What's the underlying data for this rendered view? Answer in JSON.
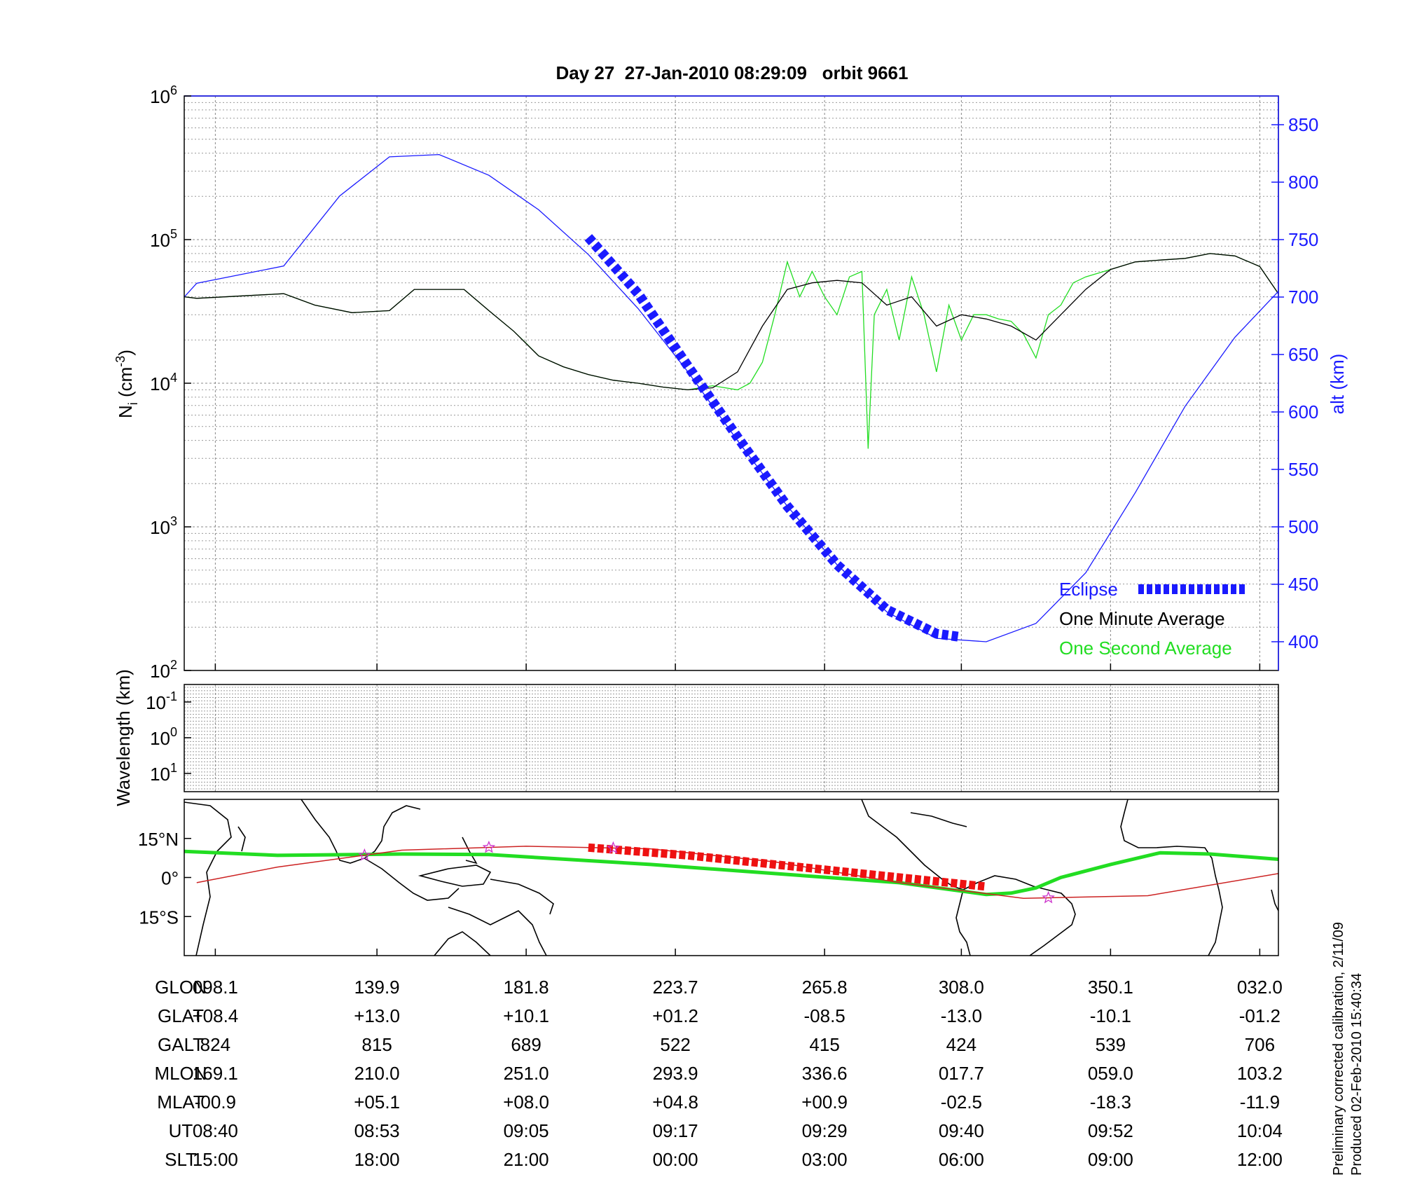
{
  "chart_data": [
    {
      "type": "line",
      "title": "Day 27  27-Jan-2010 08:29:09   orbit 9661",
      "ylabel_left": "N_i (cm^-3)",
      "ylabel_left_parts": {
        "base": "N",
        "sub": "i",
        "unit_open": " (cm",
        "sup": "-3",
        "unit_close": ")"
      },
      "ylabel_right": "alt (km)",
      "yscale_left": "log",
      "ylim_left": [
        100,
        1000000
      ],
      "ytick_left": [
        {
          "value": 100,
          "base": "10",
          "exp": "2"
        },
        {
          "value": 1000,
          "base": "10",
          "exp": "3"
        },
        {
          "value": 10000,
          "base": "10",
          "exp": "4"
        },
        {
          "value": 100000,
          "base": "10",
          "exp": "5"
        },
        {
          "value": 1000000,
          "base": "10",
          "exp": "6"
        }
      ],
      "ylim_right": [
        375,
        875
      ],
      "yticks_right": [
        "400",
        "450",
        "500",
        "550",
        "600",
        "650",
        "700",
        "750",
        "800",
        "850"
      ],
      "x_ticks_ut": [
        "08:40",
        "08:53",
        "09:05",
        "09:17",
        "09:29",
        "09:40",
        "09:52",
        "10:04"
      ],
      "xlim_ut_minutes": [
        -2.5,
        85.5
      ],
      "grid": true,
      "legend_position": "bottom-right",
      "legend": [
        {
          "name": "Eclipse",
          "color": "#1a1aff",
          "style": "thick dashed"
        },
        {
          "name": "One Minute Average",
          "color": "#000000",
          "style": "line"
        },
        {
          "name": "One Second Average",
          "color": "#22dd22",
          "style": "line"
        }
      ],
      "series": [
        {
          "name": "One Second Average",
          "color": "#22dd22",
          "axis": "left",
          "x_ut_minutes": [
            -2.5,
            -1.5,
            5.5,
            8,
            11,
            14,
            16,
            18,
            20,
            22,
            24,
            25,
            26,
            28,
            30,
            32,
            34,
            36,
            38,
            40,
            42,
            43,
            44,
            45,
            46,
            47,
            48,
            49,
            50,
            51,
            52,
            52.5,
            53,
            54,
            55,
            56,
            57,
            58,
            59,
            60,
            61,
            62,
            63,
            64,
            65,
            66,
            67,
            68,
            69,
            70,
            72,
            74,
            76,
            78,
            80,
            82,
            84,
            85.5
          ],
          "y": [
            40000,
            39000,
            42000,
            35000,
            31000,
            32000,
            45000,
            45000,
            45000,
            32000,
            23000,
            19000,
            15500,
            13000,
            11500,
            10500,
            10000,
            9400,
            9000,
            9600,
            9000,
            10000,
            14000,
            30000,
            70000,
            40000,
            60000,
            40000,
            30000,
            55000,
            60000,
            3500,
            30000,
            45000,
            20000,
            55000,
            30000,
            12000,
            35000,
            20000,
            30000,
            30000,
            28000,
            27000,
            22000,
            15000,
            30000,
            35000,
            50000,
            55000,
            62000,
            70000,
            72000,
            74000,
            80000,
            77000,
            65000,
            42000
          ]
        },
        {
          "name": "One Minute Average",
          "color": "#000000",
          "axis": "left",
          "x_ut_minutes": [
            -2.5,
            -1.5,
            5.5,
            8,
            11,
            14,
            16,
            18,
            20,
            22,
            24,
            26,
            28,
            30,
            32,
            34,
            36,
            38,
            40,
            42,
            44,
            46,
            48,
            50,
            52,
            54,
            56,
            58,
            60,
            62,
            64,
            66,
            68,
            70,
            72,
            74,
            76,
            78,
            80,
            82,
            84,
            85.5
          ],
          "y": [
            40000,
            39000,
            42000,
            35000,
            31000,
            32000,
            45000,
            45000,
            45000,
            32000,
            23000,
            15500,
            13000,
            11500,
            10500,
            10000,
            9400,
            9000,
            9300,
            12000,
            25000,
            45000,
            50000,
            52000,
            50000,
            35000,
            40000,
            25000,
            30000,
            28000,
            25000,
            20000,
            30000,
            45000,
            62000,
            70000,
            72000,
            74000,
            80000,
            77000,
            65000,
            42000
          ]
        },
        {
          "name": "alt",
          "color": "#1a1aff",
          "axis": "right",
          "x_ut_minutes": [
            -2.5,
            -1.5,
            5.5,
            10,
            14,
            18,
            22,
            26,
            30,
            34,
            38,
            42,
            46,
            50,
            54,
            58,
            62,
            66,
            70,
            74,
            78,
            82,
            85.5
          ],
          "y": [
            700,
            712,
            727,
            788,
            822,
            824,
            806,
            776,
            737,
            690,
            635,
            575,
            518,
            467,
            426,
            403,
            400,
            416,
            460,
            530,
            605,
            665,
            705
          ]
        },
        {
          "name": "Eclipse",
          "color": "#1a1aff",
          "axis": "right",
          "x_ut_minutes": [
            30,
            34,
            38,
            42,
            46,
            50,
            54,
            58,
            60
          ],
          "y": [
            752,
            703,
            640,
            578,
            518,
            467,
            428,
            407,
            404
          ]
        }
      ]
    },
    {
      "type": "line",
      "ylabel": "Wavelength (km)",
      "yticks": [
        {
          "base": "10",
          "exp": "-1"
        },
        {
          "base": "10",
          "exp": "0"
        },
        {
          "base": "10",
          "exp": "1"
        }
      ],
      "grid": true,
      "series": []
    },
    {
      "type": "map",
      "y_labels": [
        "15°N",
        "0°",
        "15°S"
      ],
      "series": [
        {
          "name": "magnetic equator",
          "color": "#22dd22",
          "x_ut_minutes": [
            -2.5,
            5,
            15,
            22,
            35,
            45,
            55,
            62,
            64,
            66,
            68,
            72,
            76,
            80,
            85.5
          ],
          "y_lat": [
            10,
            8.5,
            9,
            8.8,
            5,
            1.5,
            -2,
            -6.5,
            -6,
            -4,
            0,
            5,
            9.5,
            9,
            7
          ]
        },
        {
          "name": "ground track",
          "color": "#cc2222",
          "x_ut_minutes": [
            -1.5,
            5,
            15,
            25,
            35,
            45,
            55,
            65,
            75,
            85.5
          ],
          "y_lat": [
            -2,
            4,
            10.5,
            12,
            11,
            6,
            -2,
            -8,
            -7,
            1.5
          ]
        },
        {
          "name": "eclipse track",
          "color": "#ee1111",
          "x_ut_minutes": [
            30,
            38,
            46,
            54,
            62
          ],
          "y_lat": [
            11.5,
            8.5,
            4.5,
            0.5,
            -3.5
          ]
        }
      ],
      "markers_ut_minutes": [
        12,
        22,
        32,
        67
      ]
    }
  ],
  "table": {
    "rows": [
      {
        "label": "GLON",
        "values": [
          "098.1",
          "139.9",
          "181.8",
          "223.7",
          "265.8",
          "308.0",
          "350.1",
          "032.0"
        ]
      },
      {
        "label": "GLAT",
        "values": [
          "+08.4",
          "+13.0",
          "+10.1",
          "+01.2",
          "-08.5",
          "-13.0",
          "-10.1",
          "-01.2"
        ]
      },
      {
        "label": "GALT",
        "values": [
          "824",
          "815",
          "689",
          "522",
          "415",
          "424",
          "539",
          "706"
        ]
      },
      {
        "label": "MLON",
        "values": [
          "169.1",
          "210.0",
          "251.0",
          "293.9",
          "336.6",
          "017.7",
          "059.0",
          "103.2"
        ]
      },
      {
        "label": "MLAT",
        "values": [
          "-00.9",
          "+05.1",
          "+08.0",
          "+04.8",
          "+00.9",
          "-02.5",
          "-18.3",
          "-11.9"
        ]
      },
      {
        "label": "UT",
        "values": [
          "08:40",
          "08:53",
          "09:05",
          "09:17",
          "09:29",
          "09:40",
          "09:52",
          "10:04"
        ]
      },
      {
        "label": "SLT",
        "values": [
          "15:00",
          "18:00",
          "21:00",
          "00:00",
          "03:00",
          "06:00",
          "09:00",
          "12:00"
        ]
      }
    ]
  },
  "footer": {
    "line1": "Preliminary corrected calibration, 2/11/09",
    "line2": "Produced 02-Feb-2010 15:40:34"
  }
}
